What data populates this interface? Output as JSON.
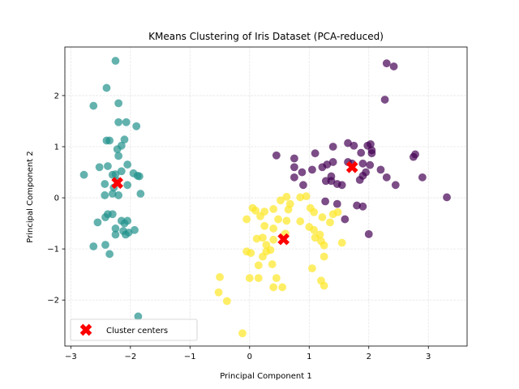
{
  "chart_data": {
    "type": "scatter",
    "title": "KMeans Clustering of Iris Dataset (PCA-reduced)",
    "xlabel": "Principal Component 1",
    "ylabel": "Principal Component 2",
    "xlim": [
      -3.1,
      3.65
    ],
    "ylim": [
      -2.9,
      2.95
    ],
    "xticks": [
      -3,
      -2,
      -1,
      0,
      1,
      2,
      3
    ],
    "yticks": [
      -2,
      -1,
      0,
      1,
      2
    ],
    "xtick_labels": [
      "−3",
      "−2",
      "−1",
      "0",
      "1",
      "2",
      "3"
    ],
    "ytick_labels": [
      "−2",
      "−1",
      "0",
      "1",
      "2"
    ],
    "grid": true,
    "legend_position": "lower-left",
    "series": [
      {
        "color": "#21918c",
        "points": [
          [
            -2.25,
            2.68
          ],
          [
            -2.4,
            2.15
          ],
          [
            -2.62,
            1.8
          ],
          [
            -2.2,
            1.85
          ],
          [
            -2.35,
            1.12
          ],
          [
            -2.4,
            1.12
          ],
          [
            -2.2,
            1.48
          ],
          [
            -2.07,
            1.48
          ],
          [
            -1.9,
            1.4
          ],
          [
            -2.1,
            1.14
          ],
          [
            -2.15,
            1.02
          ],
          [
            -2.22,
            0.95
          ],
          [
            -2.2,
            0.82
          ],
          [
            -2.52,
            0.6
          ],
          [
            -2.38,
            0.62
          ],
          [
            -2.05,
            0.65
          ],
          [
            -2.3,
            0.45
          ],
          [
            -2.25,
            0.46
          ],
          [
            -2.15,
            0.52
          ],
          [
            -1.95,
            0.48
          ],
          [
            -1.88,
            0.43
          ],
          [
            -1.85,
            0.42
          ],
          [
            -2.78,
            0.45
          ],
          [
            -2.43,
            0.27
          ],
          [
            -2.22,
            0.33
          ],
          [
            -2.05,
            0.25
          ],
          [
            -2.28,
            0.2
          ],
          [
            -2.43,
            0.05
          ],
          [
            -2.2,
            0.05
          ],
          [
            -2.3,
            0.08
          ],
          [
            -1.83,
            0.08
          ],
          [
            -2.38,
            -0.32
          ],
          [
            -2.3,
            -0.32
          ],
          [
            -2.42,
            -0.38
          ],
          [
            -2.15,
            -0.45
          ],
          [
            -2.1,
            -0.5
          ],
          [
            -2.05,
            -0.45
          ],
          [
            -2.55,
            -0.48
          ],
          [
            -2.25,
            -0.6
          ],
          [
            -2.12,
            -0.65
          ],
          [
            -2.03,
            -0.68
          ],
          [
            -1.93,
            -0.63
          ],
          [
            -2.25,
            -0.72
          ],
          [
            -2.08,
            -0.72
          ],
          [
            -2.42,
            -0.92
          ],
          [
            -2.62,
            -0.95
          ],
          [
            -2.35,
            -1.1
          ],
          [
            -1.87,
            -2.32
          ]
        ]
      },
      {
        "color": "#440154",
        "points": [
          [
            2.3,
            2.63
          ],
          [
            2.42,
            2.57
          ],
          [
            2.27,
            1.92
          ],
          [
            1.98,
            1.02
          ],
          [
            2.03,
            1.05
          ],
          [
            1.65,
            1.07
          ],
          [
            2.05,
            0.93
          ],
          [
            2.05,
            0.87
          ],
          [
            1.75,
            1.02
          ],
          [
            1.4,
            1.0
          ],
          [
            1.1,
            0.87
          ],
          [
            1.87,
            0.88
          ],
          [
            2.78,
            0.85
          ],
          [
            2.75,
            0.8
          ],
          [
            0.45,
            0.83
          ],
          [
            0.75,
            0.77
          ],
          [
            0.75,
            0.6
          ],
          [
            1.3,
            0.65
          ],
          [
            1.65,
            0.7
          ],
          [
            1.72,
            0.67
          ],
          [
            1.9,
            0.67
          ],
          [
            2.02,
            0.64
          ],
          [
            2.2,
            0.55
          ],
          [
            1.4,
            0.7
          ],
          [
            1.05,
            0.55
          ],
          [
            1.22,
            0.6
          ],
          [
            0.88,
            0.5
          ],
          [
            1.95,
            0.5
          ],
          [
            1.9,
            0.43
          ],
          [
            2.3,
            0.4
          ],
          [
            1.37,
            0.42
          ],
          [
            0.75,
            0.4
          ],
          [
            1.37,
            0.33
          ],
          [
            1.47,
            0.27
          ],
          [
            1.55,
            0.25
          ],
          [
            2.9,
            0.4
          ],
          [
            1.85,
            0.35
          ],
          [
            1.28,
            0.33
          ],
          [
            2.45,
            0.25
          ],
          [
            0.9,
            0.25
          ],
          [
            3.31,
            0.01
          ],
          [
            1.27,
            -0.07
          ],
          [
            1.47,
            -0.12
          ],
          [
            1.8,
            -0.15
          ],
          [
            1.9,
            -0.17
          ],
          [
            1.6,
            -0.42
          ],
          [
            2.0,
            -0.71
          ]
        ]
      },
      {
        "color": "#fde725",
        "points": [
          [
            0.62,
            0.02
          ],
          [
            0.85,
            0.01
          ],
          [
            0.95,
            0.03
          ],
          [
            0.52,
            -0.05
          ],
          [
            0.68,
            -0.12
          ],
          [
            0.4,
            -0.22
          ],
          [
            0.05,
            -0.2
          ],
          [
            0.1,
            -0.25
          ],
          [
            -0.05,
            -0.42
          ],
          [
            0.25,
            -0.27
          ],
          [
            0.18,
            -0.36
          ],
          [
            0.65,
            -0.23
          ],
          [
            1.02,
            -0.2
          ],
          [
            1.08,
            -0.28
          ],
          [
            1.22,
            -0.38
          ],
          [
            1.4,
            -0.32
          ],
          [
            1.48,
            -0.28
          ],
          [
            0.48,
            -0.42
          ],
          [
            0.62,
            -0.45
          ],
          [
            0.85,
            -0.46
          ],
          [
            1.35,
            -0.48
          ],
          [
            0.25,
            -0.55
          ],
          [
            0.4,
            -0.6
          ],
          [
            1.0,
            -0.57
          ],
          [
            1.18,
            -0.72
          ],
          [
            1.08,
            -0.63
          ],
          [
            0.6,
            -0.7
          ],
          [
            0.12,
            -0.8
          ],
          [
            0.22,
            -0.78
          ],
          [
            0.4,
            -0.82
          ],
          [
            1.1,
            -0.78
          ],
          [
            1.2,
            -0.85
          ],
          [
            1.55,
            -0.88
          ],
          [
            0.28,
            -0.92
          ],
          [
            -0.05,
            -1.05
          ],
          [
            0.02,
            -1.08
          ],
          [
            0.35,
            -1.02
          ],
          [
            1.25,
            -0.93
          ],
          [
            0.22,
            -1.15
          ],
          [
            0.28,
            -1.05
          ],
          [
            1.25,
            -1.15
          ],
          [
            0.15,
            -1.32
          ],
          [
            0.38,
            -1.3
          ],
          [
            1.05,
            -1.38
          ],
          [
            -0.5,
            -1.55
          ],
          [
            0.0,
            -1.57
          ],
          [
            0.15,
            -1.57
          ],
          [
            0.45,
            -1.57
          ],
          [
            1.2,
            -1.62
          ],
          [
            1.25,
            -1.72
          ],
          [
            0.4,
            -1.75
          ],
          [
            0.55,
            -1.75
          ],
          [
            -0.52,
            -1.85
          ],
          [
            -0.38,
            -2.02
          ],
          [
            -0.12,
            -2.65
          ]
        ]
      }
    ],
    "centers": [
      [
        -2.22,
        0.29
      ],
      [
        1.72,
        0.6
      ],
      [
        0.57,
        -0.81
      ]
    ],
    "center_color": "#ff0000",
    "legend": [
      {
        "label": "Cluster centers",
        "marker": "X",
        "color": "#ff0000"
      }
    ]
  }
}
